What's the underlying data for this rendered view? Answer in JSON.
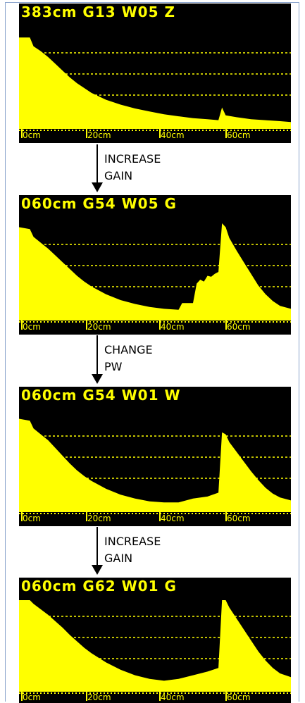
{
  "panels": [
    {
      "header": "383cm  G13  W05  Z",
      "scale_labels": [
        "0cm",
        "20cm",
        "40cm",
        "60cm"
      ],
      "trace": [
        [
          0,
          0.94
        ],
        [
          3,
          0.94
        ],
        [
          4,
          0.85
        ],
        [
          6,
          0.8
        ],
        [
          8,
          0.74
        ],
        [
          10,
          0.67
        ],
        [
          12,
          0.6
        ],
        [
          14,
          0.53
        ],
        [
          16,
          0.47
        ],
        [
          18,
          0.42
        ],
        [
          20,
          0.37
        ],
        [
          24,
          0.3
        ],
        [
          28,
          0.25
        ],
        [
          32,
          0.21
        ],
        [
          36,
          0.18
        ],
        [
          40,
          0.15
        ],
        [
          44,
          0.13
        ],
        [
          48,
          0.11
        ],
        [
          52,
          0.1
        ],
        [
          55,
          0.09
        ],
        [
          56,
          0.22
        ],
        [
          57,
          0.14
        ],
        [
          60,
          0.12
        ],
        [
          64,
          0.1
        ],
        [
          68,
          0.09
        ],
        [
          72,
          0.08
        ],
        [
          75,
          0.07
        ]
      ]
    },
    {
      "header": "060cm  G54  W05  G",
      "scale_labels": [
        "0cm",
        "20cm",
        "40cm",
        "60cm"
      ],
      "trace": [
        [
          0,
          0.96
        ],
        [
          3,
          0.94
        ],
        [
          4,
          0.86
        ],
        [
          6,
          0.8
        ],
        [
          8,
          0.74
        ],
        [
          10,
          0.67
        ],
        [
          12,
          0.6
        ],
        [
          14,
          0.53
        ],
        [
          16,
          0.46
        ],
        [
          18,
          0.4
        ],
        [
          20,
          0.35
        ],
        [
          24,
          0.27
        ],
        [
          28,
          0.21
        ],
        [
          32,
          0.17
        ],
        [
          36,
          0.14
        ],
        [
          40,
          0.12
        ],
        [
          44,
          0.11
        ],
        [
          45,
          0.18
        ],
        [
          48,
          0.18
        ],
        [
          49,
          0.38
        ],
        [
          50,
          0.42
        ],
        [
          51,
          0.4
        ],
        [
          52,
          0.46
        ],
        [
          53,
          0.45
        ],
        [
          54,
          0.48
        ],
        [
          55,
          0.5
        ],
        [
          56,
          1.0
        ],
        [
          57,
          0.96
        ],
        [
          58,
          0.85
        ],
        [
          60,
          0.72
        ],
        [
          62,
          0.6
        ],
        [
          64,
          0.48
        ],
        [
          66,
          0.36
        ],
        [
          68,
          0.27
        ],
        [
          70,
          0.2
        ],
        [
          72,
          0.15
        ],
        [
          75,
          0.12
        ]
      ]
    },
    {
      "header": "060cm  G54  W01  W",
      "scale_labels": [
        "0cm",
        "20cm",
        "40cm",
        "60cm"
      ],
      "trace": [
        [
          0,
          0.96
        ],
        [
          3,
          0.94
        ],
        [
          4,
          0.86
        ],
        [
          6,
          0.8
        ],
        [
          8,
          0.74
        ],
        [
          10,
          0.66
        ],
        [
          12,
          0.58
        ],
        [
          14,
          0.5
        ],
        [
          16,
          0.43
        ],
        [
          18,
          0.37
        ],
        [
          20,
          0.32
        ],
        [
          24,
          0.24
        ],
        [
          28,
          0.18
        ],
        [
          32,
          0.14
        ],
        [
          36,
          0.11
        ],
        [
          40,
          0.1
        ],
        [
          44,
          0.1
        ],
        [
          48,
          0.14
        ],
        [
          52,
          0.16
        ],
        [
          55,
          0.2
        ],
        [
          56,
          0.82
        ],
        [
          57,
          0.8
        ],
        [
          58,
          0.72
        ],
        [
          60,
          0.62
        ],
        [
          62,
          0.52
        ],
        [
          64,
          0.42
        ],
        [
          66,
          0.33
        ],
        [
          68,
          0.25
        ],
        [
          70,
          0.19
        ],
        [
          72,
          0.15
        ],
        [
          75,
          0.12
        ]
      ]
    },
    {
      "header": "060cm  G62  W01  G",
      "scale_labels": [
        "0cm",
        "20cm",
        "40cm",
        "60cm"
      ],
      "trace": [
        [
          0,
          1.0
        ],
        [
          3,
          1.0
        ],
        [
          4,
          0.96
        ],
        [
          6,
          0.9
        ],
        [
          8,
          0.84
        ],
        [
          10,
          0.77
        ],
        [
          12,
          0.7
        ],
        [
          14,
          0.62
        ],
        [
          16,
          0.55
        ],
        [
          18,
          0.48
        ],
        [
          20,
          0.42
        ],
        [
          24,
          0.32
        ],
        [
          28,
          0.24
        ],
        [
          32,
          0.18
        ],
        [
          36,
          0.14
        ],
        [
          40,
          0.12
        ],
        [
          44,
          0.14
        ],
        [
          48,
          0.18
        ],
        [
          52,
          0.22
        ],
        [
          55,
          0.26
        ],
        [
          56,
          1.0
        ],
        [
          57,
          1.0
        ],
        [
          58,
          0.92
        ],
        [
          60,
          0.8
        ],
        [
          62,
          0.68
        ],
        [
          64,
          0.56
        ],
        [
          66,
          0.44
        ],
        [
          68,
          0.34
        ],
        [
          70,
          0.26
        ],
        [
          72,
          0.2
        ],
        [
          75,
          0.16
        ]
      ]
    }
  ],
  "steps": [
    {
      "lines": [
        "INCREASE",
        "GAIN"
      ]
    },
    {
      "lines": [
        "CHANGE",
        "PW"
      ]
    },
    {
      "lines": [
        "INCREASE",
        "GAIN"
      ]
    }
  ],
  "colors": {
    "trace": "#ffff00",
    "background": "#000000",
    "grid": "#ffff00"
  }
}
